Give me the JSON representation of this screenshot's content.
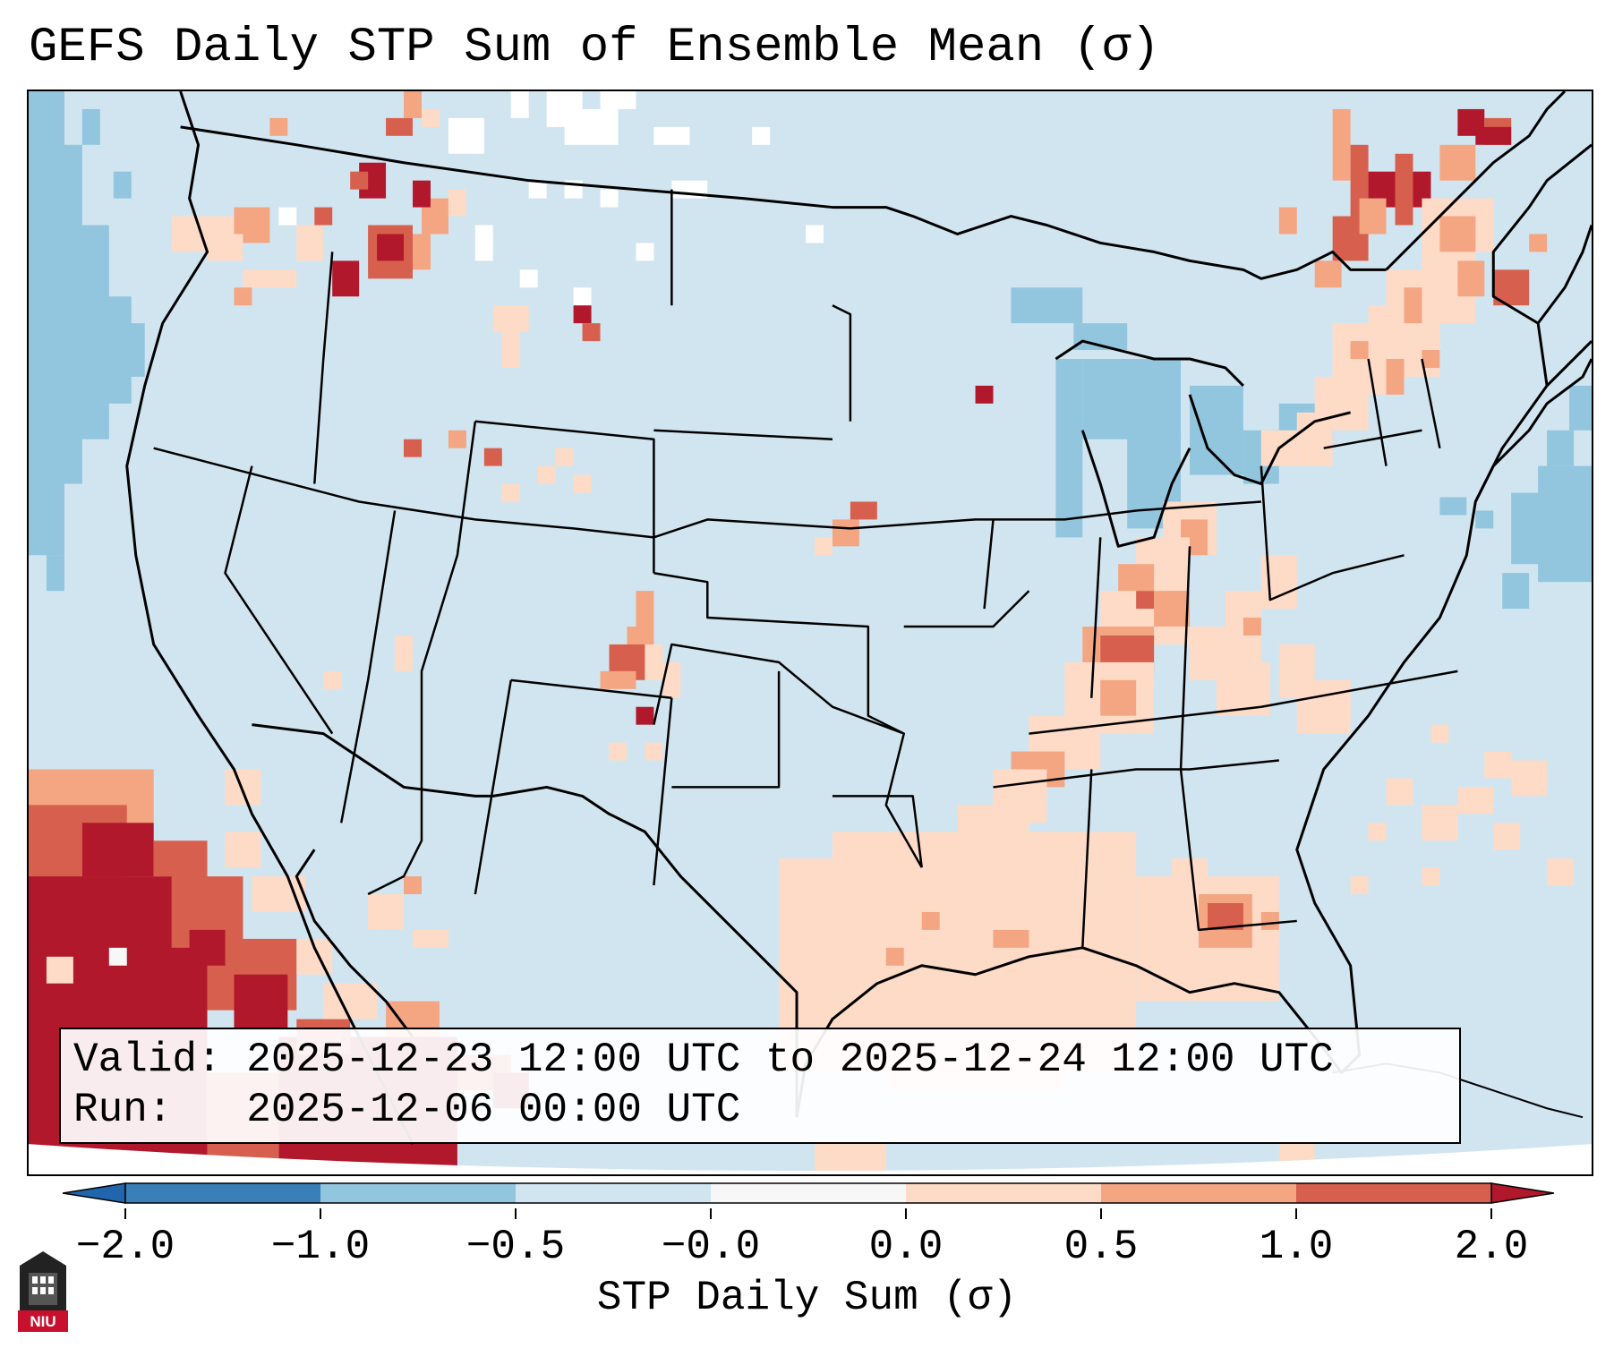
{
  "title": "GEFS Daily STP Sum of Ensemble Mean (σ)",
  "info": {
    "valid_label": "Valid:",
    "valid_value": "2025-12-23 12:00 UTC to 2025-12-24 12:00 UTC",
    "run_label": "Run:",
    "run_value": "2025-12-06 00:00 UTC"
  },
  "colorbar": {
    "label": "STP Daily Sum (σ)",
    "ticks": [
      "−2.0",
      "−1.0",
      "−0.5",
      "−0.0",
      "0.0",
      "0.5",
      "1.0",
      "2.0"
    ],
    "bins": [
      {
        "color": "#3a7fb8"
      },
      {
        "color": "#92c5de"
      },
      {
        "color": "#d1e5f0"
      },
      {
        "color": "#f7f7f7"
      },
      {
        "color": "#fddbc7"
      },
      {
        "color": "#f4a582"
      },
      {
        "color": "#d6604d"
      },
      {
        "color": "#b2182b"
      }
    ],
    "extend_low_color": "#2166ac",
    "extend_high_color": "#b2182b"
  },
  "colors": {
    "background_field": "#d1e5f0",
    "light_positive": "#fddbc7",
    "moderate_positive": "#f4a582",
    "strong_positive": "#d6604d",
    "extreme_positive": "#b2182b",
    "light_negative": "#92c5de",
    "neutral": "#f7f7f7"
  },
  "map": {
    "projection": "Lambert Conformal",
    "region": "CONUS",
    "logo_text": "NIU"
  }
}
